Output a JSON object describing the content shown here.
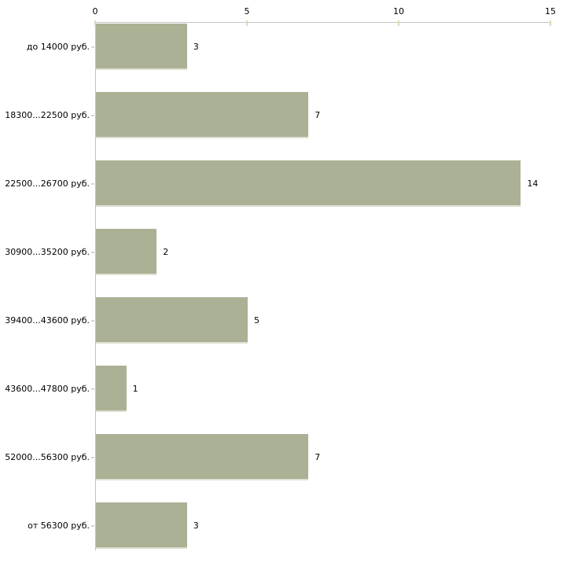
{
  "chart_data": {
    "type": "bar",
    "orientation": "horizontal",
    "title": "",
    "xlabel": "",
    "ylabel": "",
    "categories": [
      "до 14000 руб.",
      "18300...22500 руб.",
      "22500...26700 руб.",
      "30900...35200 руб.",
      "39400...43600 руб.",
      "43600...47800 руб.",
      "52000...56300 руб.",
      "от 56300 руб."
    ],
    "values": [
      3,
      7,
      14,
      2,
      5,
      1,
      7,
      3
    ],
    "value_labels": [
      "3",
      "7",
      "14",
      "2",
      "5",
      "1",
      "7",
      "3"
    ],
    "xlim": [
      0,
      15
    ],
    "xticks": [
      0,
      5,
      10,
      15
    ],
    "xtick_labels": [
      "0",
      "5",
      "10",
      "15"
    ],
    "axis_position": "top",
    "grid": false,
    "legend": "none",
    "colors": {
      "bar_fill": "#abb194",
      "bar_bottom_edge": "#dfe1d2",
      "axis_line": "#c2c2c2",
      "tick_mark": "#d8dbbd",
      "text": "#000000",
      "background": "#ffffff"
    }
  }
}
